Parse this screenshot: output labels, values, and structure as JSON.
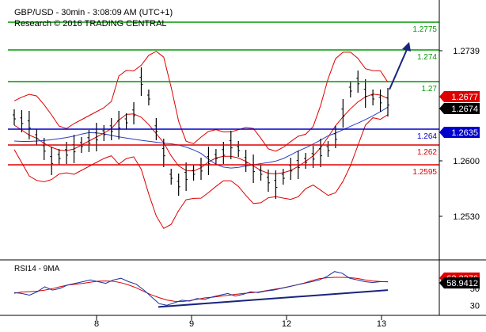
{
  "header": {
    "line1": "GBP/USD - 30min - 3:08:09 AM (UTC+1)",
    "line2": "Research © 2016 TRADING CENTRAL"
  },
  "chart_data": {
    "type": "line",
    "symbol": "GBP/USD",
    "timeframe": "30min",
    "y_range": [
      1.2485,
      1.2795
    ],
    "y_ticks": [
      "1.2739",
      "1.2600",
      "1.2530"
    ],
    "x_ticks": [
      "8",
      "9",
      "12",
      "13"
    ],
    "levels": [
      {
        "label": "1.2775",
        "value": 1.2775,
        "color": "#009900",
        "text_color": "#009900"
      },
      {
        "label": "1.274",
        "value": 1.274,
        "color": "#009900",
        "text_color": "#009900"
      },
      {
        "label": "1.27",
        "value": 1.27,
        "color": "#009900",
        "text_color": "#009900"
      },
      {
        "label": "1.264",
        "value": 1.264,
        "color": "#0000cc",
        "text_color": "#0000cc"
      },
      {
        "label": "1.262",
        "value": 1.262,
        "color": "#dd0000",
        "text_color": "#dd0000"
      },
      {
        "label": "1.2595",
        "value": 1.2595,
        "color": "#dd0000",
        "text_color": "#dd0000"
      }
    ],
    "price_tags": [
      {
        "label": "1.2677",
        "value": 1.2681,
        "bg": "#dd0000",
        "fg": "#ffffff"
      },
      {
        "label": "1.2674",
        "value": 1.2666,
        "bg": "#000000",
        "fg": "#ffffff"
      },
      {
        "label": "1.2635",
        "value": 1.2636,
        "bg": "#0000cc",
        "fg": "#ffffff"
      }
    ],
    "price_path": [
      1.2655,
      1.265,
      1.2645,
      1.263,
      1.2615,
      1.26,
      1.2605,
      1.261,
      1.2615,
      1.262,
      1.2625,
      1.263,
      1.2635,
      1.264,
      1.2645,
      1.265,
      1.266,
      1.27,
      1.268,
      1.264,
      1.261,
      1.258,
      1.257,
      1.258,
      1.2585,
      1.259,
      1.26,
      1.2605,
      1.261,
      1.262,
      1.2615,
      1.26,
      1.259,
      1.2585,
      1.2575,
      1.257,
      1.258,
      1.259,
      1.2595,
      1.26,
      1.2605,
      1.261,
      1.2615,
      1.263,
      1.266,
      1.269,
      1.27,
      1.2685,
      1.268,
      1.2676,
      1.2674
    ],
    "rsi": {
      "title": "RSI14 - 9MA",
      "y_range": [
        20,
        80
      ],
      "y_ticks": [
        "50",
        "30"
      ],
      "tags": [
        {
          "label": "62.3376",
          "value": 62.3,
          "bg": "#dd0000",
          "fg": "#ffffff"
        },
        {
          "label": "58.9412",
          "value": 56.5,
          "bg": "#000000",
          "fg": "#ffffff"
        }
      ],
      "values": [
        45,
        44,
        42,
        46,
        52,
        48,
        50,
        54,
        56,
        58,
        60,
        58,
        56,
        60,
        62,
        58,
        55,
        48,
        40,
        32,
        30,
        33,
        36,
        35,
        38,
        37,
        40,
        42,
        44,
        41,
        43,
        46,
        45,
        47,
        48,
        50,
        52,
        54,
        56,
        58,
        60,
        64,
        70,
        68,
        62,
        60,
        58,
        57,
        58,
        58
      ]
    }
  }
}
